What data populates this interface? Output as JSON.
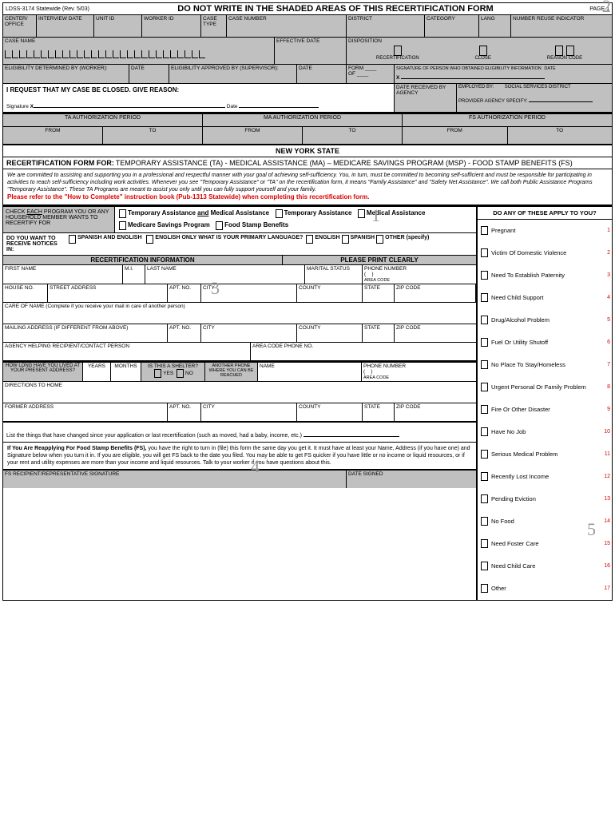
{
  "header": {
    "form_no": "LDSS-3174 Statewide (Rev. 5/03)",
    "title": "DO NOT WRITE IN THE SHADED AREAS OF THIS RECERTIFICATION FORM",
    "page": "PAGE 1"
  },
  "top_fields": {
    "center": "CENTER/ OFFICE",
    "interview": "INTERVIEW DATE",
    "unit": "UNIT ID",
    "worker": "WORKER ID",
    "case_type": "CASE TYPE",
    "case_num": "CASE NUMBER",
    "district": "DISTRICT",
    "category": "CATEGORY",
    "lang": "LANG",
    "reuse": "NUMBER REUSE INDICATOR"
  },
  "row2": {
    "case_name": "CASE NAME",
    "eff_date": "EFFECTIVE DATE",
    "disposition": "DISPOSITION",
    "recert": "RECERTIFICATION",
    "close": "CLOSE",
    "reason": "REASON CODE"
  },
  "row3": {
    "elig_worker": "ELIGIBILITY DETERMINED BY (WORKER):",
    "date1": "DATE",
    "elig_sup": "ELIGIBILITY APPROVED BY (SUPERVISOR):",
    "date2": "DATE",
    "form_of": "FORM",
    "of": "OF",
    "sig_person": "SIGNATURE OF PERSON WHO OBTAINED ELIGIBILITY INFORMATION",
    "date3": "DATE"
  },
  "request": {
    "text": "I REQUEST THAT MY CASE BE CLOSED.  GIVE REASON:",
    "sig": "Signature",
    "date": "Date",
    "received": "DATE RECEIVED BY AGENCY",
    "employed": "EMPLOYED BY:",
    "district": "SOCIAL SERVICES DISTRICT",
    "provider": "PROVIDER AGENCY SPECIFY:"
  },
  "auth": {
    "ta": "TA AUTHORIZATION PERIOD",
    "ma": "MA AUTHORIZATION PERIOD",
    "fs": "FS AUTHORIZATION PERIOD",
    "from": "FROM",
    "to": "TO"
  },
  "nys": "NEW YORK STATE",
  "recert_for": {
    "label": "RECERTIFICATION FORM FOR:",
    "text": "TEMPORARY ASSISTANCE (TA) - MEDICAL ASSISTANCE (MA) – MEDICARE SAVINGS PROGRAM (MSP) - FOOD STAMP BENEFITS (FS)"
  },
  "commit": "We are committed to assisting and supporting you in a professional and respectful manner with your goal of achieving self-sufficiency. You, in turn, must be committed to becoming self-sufficient and must be responsible for participating in activities to reach self-sufficiency including work activities. Whenever you see \"Temporary Assistance\" or \"TA\" on the recertification form, it means \"Family Assistance\" and \"Safety Net Assistance\". We call both Public Assistance Programs \"Temporary Assistance\". These TA Programs are meant to assist you only until you can fully support yourself and your family.",
  "red_note": "Please refer to the \"How to Complete\" instruction book (Pub-1313 Statewide) when completing this recertification form.",
  "check": {
    "header": "CHECK EACH PROGRAM YOU OR ANY HOUSEHOLD MEMBER WANTS TO RECERTIFY FOR",
    "ta_ma": "Temporary Assistance and Medical Assistance",
    "ta": "Temporary Assistance",
    "ma": "Medical Assistance",
    "msp": "Medicare Savings Program",
    "fs": "Food Stamp Benefits"
  },
  "notices": {
    "q": "DO YOU WANT TO RECEIVE NOTICES IN:",
    "span_eng": "SPANISH AND ENGLISH",
    "eng": "ENGLISH ONLY",
    "primary": "WHAT IS YOUR PRIMARY LANGUAGE?",
    "english": "ENGLISH",
    "spanish": "SPANISH",
    "other": "OTHER (specify)"
  },
  "recert_info": {
    "title": "RECERTIFICATION INFORMATION",
    "print": "PLEASE PRINT CLEARLY",
    "first": "FIRST NAME",
    "mi": "M.I.",
    "last": "LAST NAME",
    "marital": "MARITAL STATUS",
    "phone": "PHONE NUMBER",
    "area": "AREA CODE",
    "house": "HOUSE NO.",
    "street": "STREET ADDRESS",
    "apt": "APT. NO.",
    "city": "CITY",
    "county": "COUNTY",
    "state": "STATE",
    "zip": "ZIP CODE",
    "care": "CARE OF NAME (Complete if you receive your mail in care of another person)",
    "mailing": "MAILING ADDRESS (IF DIFFERENT FROM ABOVE)",
    "agency": "AGENCY HELPING RECIPIENT/CONTACT PERSON",
    "area_phone": "AREA CODE PHONE NO.",
    "howlong": "HOW LONG HAVE YOU LIVED AT YOUR PRESENT ADDRESS?",
    "years": "YEARS",
    "months": "MONTHS",
    "shelter": "IS THIS A SHELTER?",
    "yes": "YES",
    "no": "NO",
    "another": "ANOTHER PHONE WHERE YOU CAN BE REACHED",
    "name": "NAME",
    "directions": "DIRECTIONS TO HOME",
    "former": "FORMER ADDRESS",
    "changes": "List the things that have changed since your application or last recertification (such as moved, had a baby, income, etc.)"
  },
  "fs_note": {
    "bold": "If You Are Reapplying For Food Stamp Benefits (FS),",
    "text": " you have the right to turn in (file) this form the same day you get it. It must have at least your Name, Address (if you have one) and Signature below when you turn it in. If you are eligible, you will get FS back to the date you filed. You may be able to get FS quicker if you have little or no income or liquid resources, or if your rent and utility expenses are more than your income and liquid resources. Talk to your worker if you have questions about this."
  },
  "fs_sig": {
    "label": "FS RECIPIENT/REPRESENTATIVE SIGNATURE",
    "date": "DATE SIGNED"
  },
  "apply": {
    "title": "DO ANY OF THESE APPLY TO YOU?",
    "items": [
      {
        "t": "Pregnant",
        "n": "1"
      },
      {
        "t": "Victim Of Domestic Violence",
        "n": "2"
      },
      {
        "t": "Need To Establish Paternity",
        "n": "3"
      },
      {
        "t": "Need Child Support",
        "n": "4"
      },
      {
        "t": "Drug/Alcohol Problem",
        "n": "5"
      },
      {
        "t": "Fuel Or Utility Shutoff",
        "n": "6"
      },
      {
        "t": "No Place To Stay/Homeless",
        "n": "7"
      },
      {
        "t": "Urgent Personal Or Family Problem",
        "n": "8"
      },
      {
        "t": "Fire Or Other Disaster",
        "n": "9"
      },
      {
        "t": "Have No Job",
        "n": "10"
      },
      {
        "t": "Serious Medical Problem",
        "n": "11"
      },
      {
        "t": "Recently Lost Income",
        "n": "12"
      },
      {
        "t": "Pending Eviction",
        "n": "13"
      },
      {
        "t": "No Food",
        "n": "14"
      },
      {
        "t": "Need Foster Care",
        "n": "15"
      },
      {
        "t": "Need Child Care",
        "n": "16"
      },
      {
        "t": "Other",
        "n": "17"
      }
    ]
  }
}
